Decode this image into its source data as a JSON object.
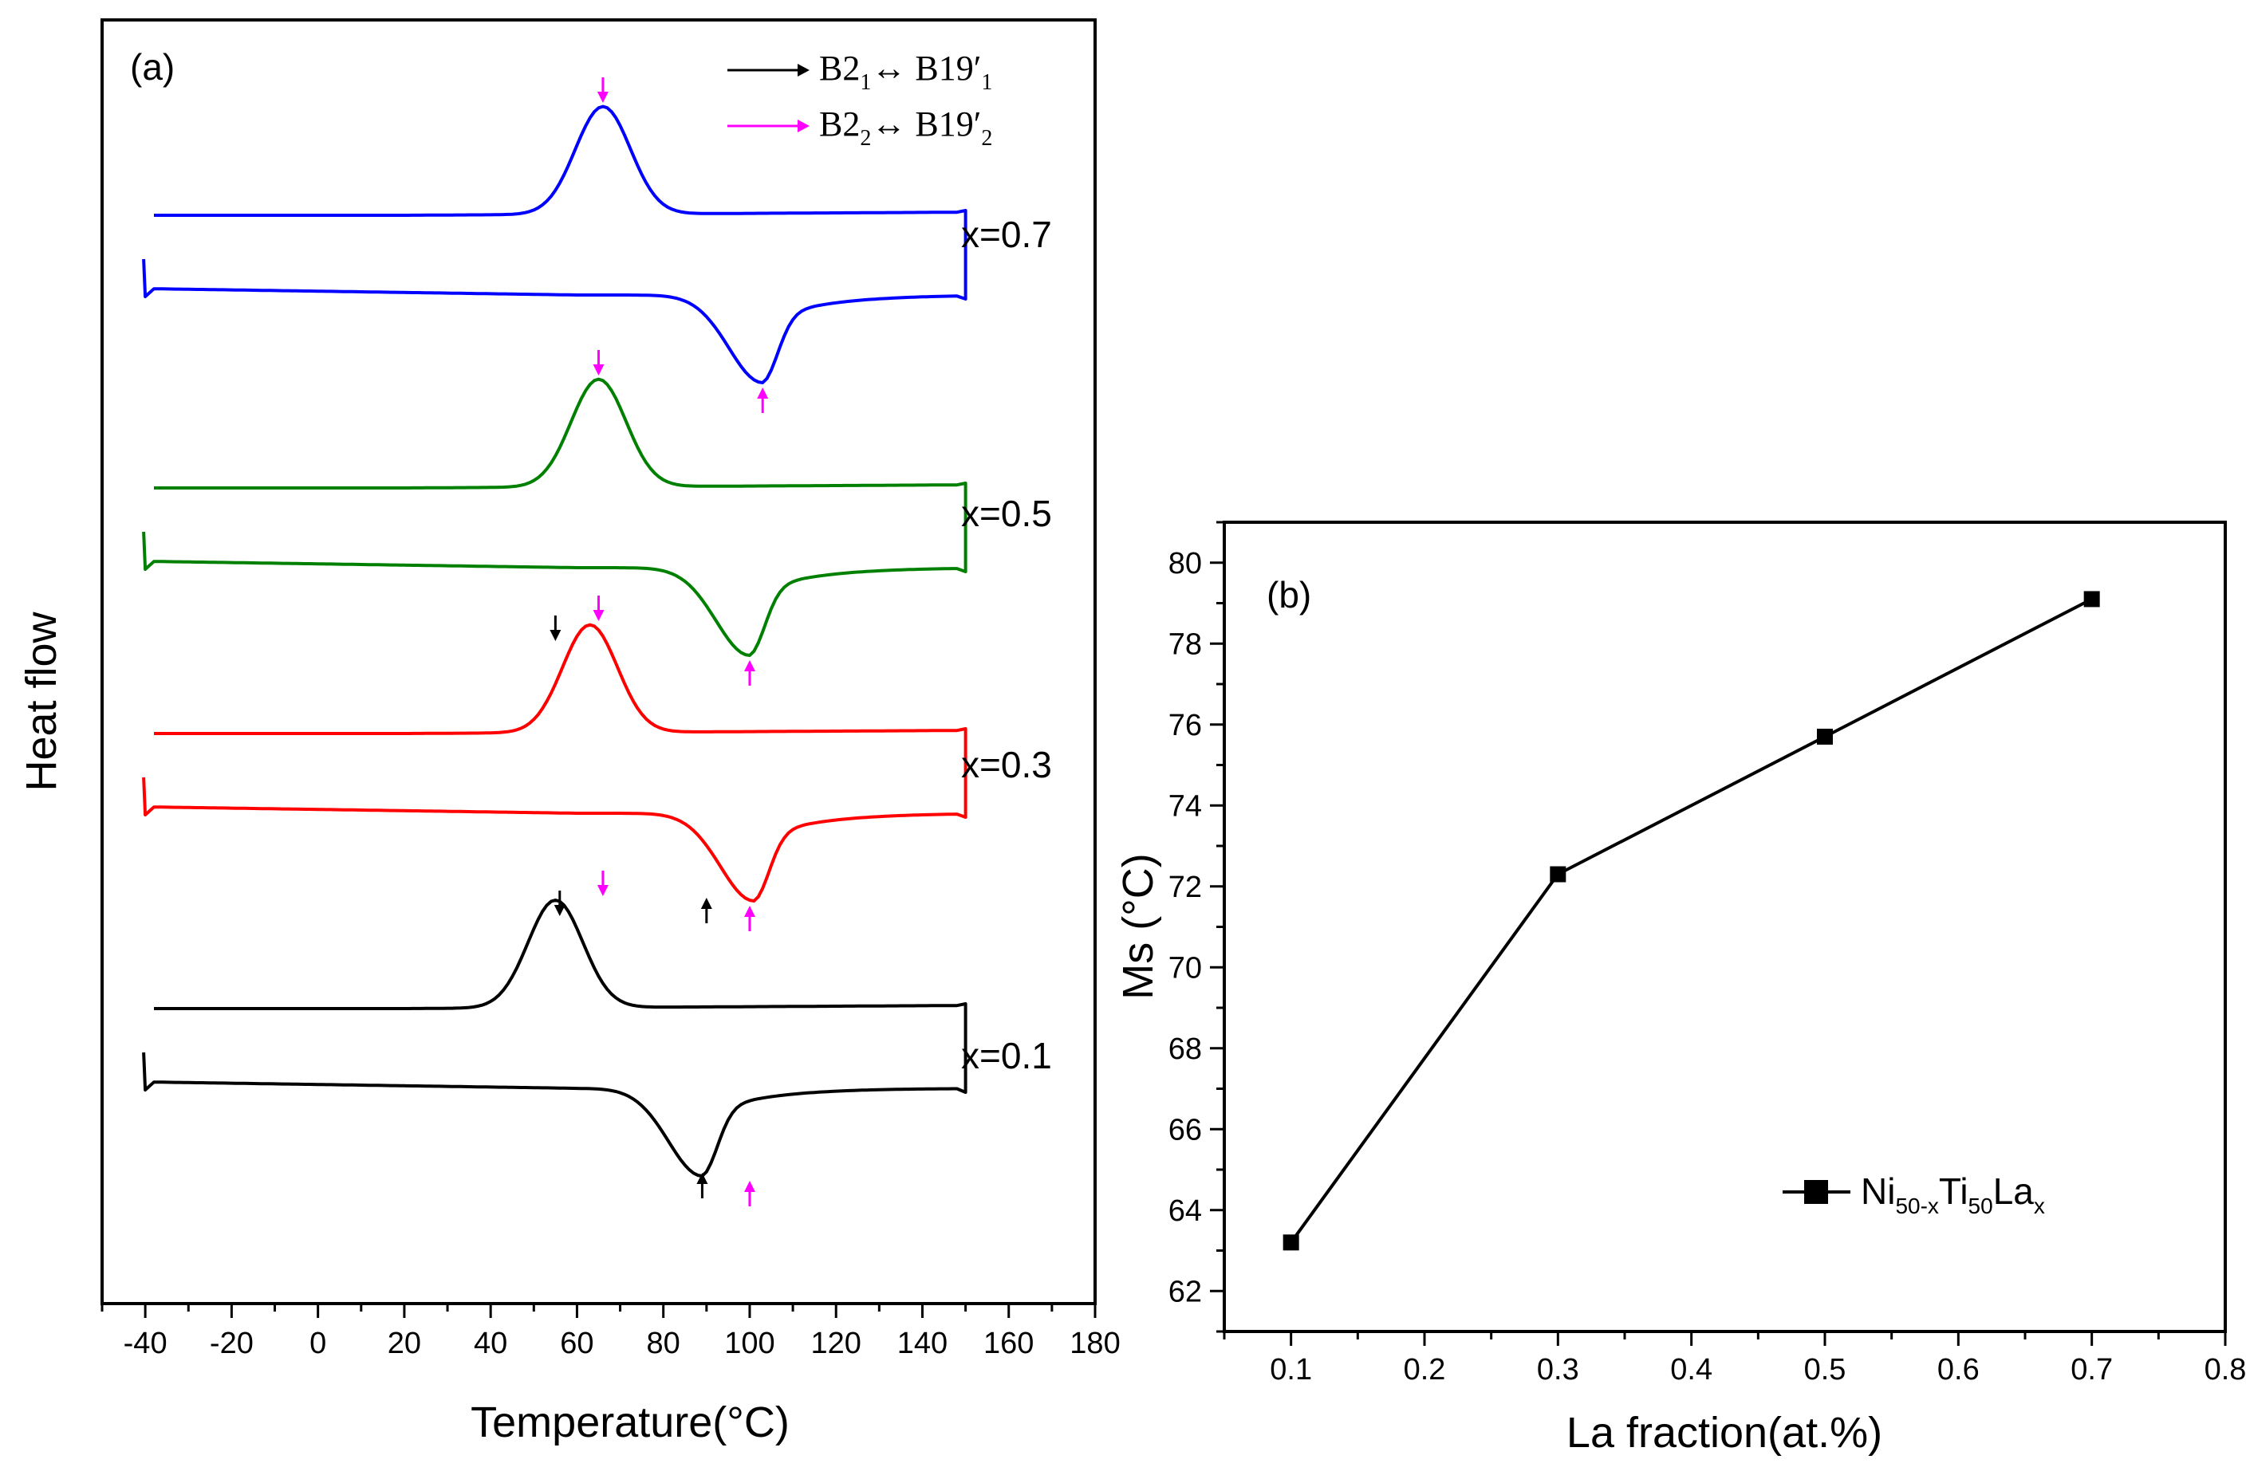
{
  "chart_data": [
    {
      "panel": "(a)",
      "type": "line",
      "xlabel": "Temperature(°C)",
      "ylabel": "Heat flow",
      "xlim": [
        -50,
        180
      ],
      "x_ticks": [
        -40,
        -20,
        0,
        20,
        40,
        60,
        80,
        100,
        120,
        140,
        160,
        180
      ],
      "legend": {
        "position": "top-right",
        "entries": [
          {
            "label_main": "B2",
            "sub1": "1",
            "arrow": "↔",
            "label_second": "B19′",
            "sub2": "1",
            "color": "#000000"
          },
          {
            "label_main": "B2",
            "sub1": "2",
            "arrow": "↔",
            "label_second": "B19′",
            "sub2": "2",
            "color": "#ff00ff"
          }
        ]
      },
      "series": [
        {
          "name": "x=0.7",
          "color": "#0000ff",
          "cooling_peak_T": 66,
          "heating_valley_T": 103,
          "peaks_B2_1": [],
          "peaks_B2_2": [
            66,
            103
          ]
        },
        {
          "name": "x=0.5",
          "color": "#008000",
          "cooling_peak_T": 65,
          "heating_valley_T": 100,
          "peaks_B2_1": [],
          "peaks_B2_2": [
            65,
            100
          ]
        },
        {
          "name": "x=0.3",
          "color": "#ff0000",
          "cooling_peak_T": 63,
          "heating_valley_T": 101,
          "peaks_B2_1": [
            55,
            90
          ],
          "peaks_B2_2": [
            65,
            100
          ]
        },
        {
          "name": "x=0.1",
          "color": "#000000",
          "cooling_peak_T": 55,
          "heating_valley_T": 89,
          "peaks_B2_1": [
            56,
            89
          ],
          "peaks_B2_2": [
            66,
            100
          ]
        }
      ]
    },
    {
      "panel": "(b)",
      "type": "line",
      "xlabel": "La fraction(at.%)",
      "ylabel": "Ms (°C)",
      "xlim": [
        0.05,
        0.8
      ],
      "ylim": [
        61,
        81
      ],
      "x_ticks": [
        "0.1",
        "0.2",
        "0.3",
        "0.4",
        "0.5",
        "0.6",
        "0.7",
        "0.8"
      ],
      "y_ticks": [
        "62",
        "64",
        "66",
        "68",
        "70",
        "72",
        "74",
        "76",
        "78",
        "80"
      ],
      "x": [
        0.1,
        0.3,
        0.5,
        0.7
      ],
      "values": [
        63.2,
        72.3,
        75.7,
        79.1
      ],
      "legend": {
        "position": "bottom-right",
        "base": "Ni",
        "sub_a": "50-x",
        "mid": "Ti",
        "sub_b": "50",
        "end": "La",
        "sub_c": "x"
      }
    }
  ]
}
